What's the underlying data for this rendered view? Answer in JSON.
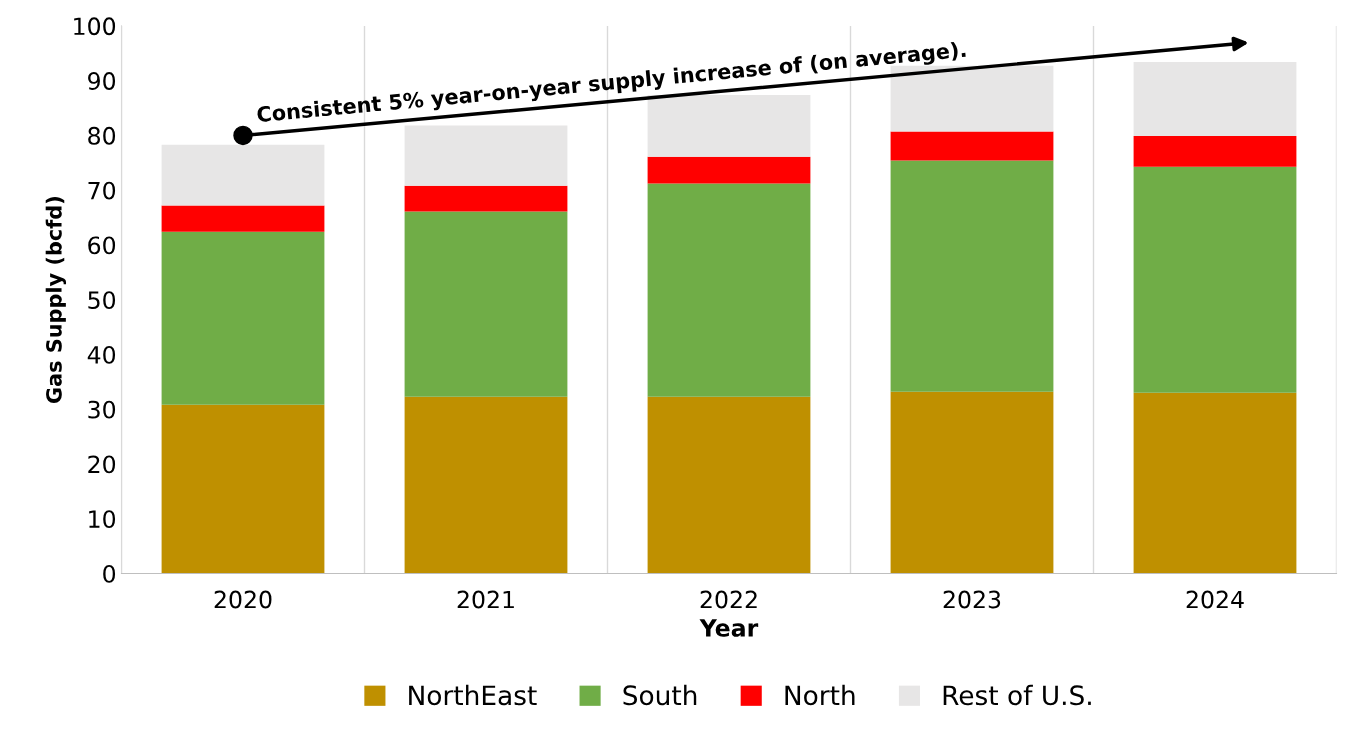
{
  "chart_data": {
    "type": "bar",
    "stacked": true,
    "xlabel": "Year",
    "ylabel": "Gas Supply (bcfd)",
    "categories": [
      "2020",
      "2021",
      "2022",
      "2023",
      "2024"
    ],
    "series": [
      {
        "name": "NorthEast",
        "color": "#bf9000",
        "values": [
          30.8,
          32.3,
          32.3,
          33.2,
          33.0
        ]
      },
      {
        "name": "South",
        "color": "#70ad47",
        "values": [
          31.6,
          33.8,
          38.9,
          42.2,
          41.3
        ]
      },
      {
        "name": "North",
        "color": "#ff0000",
        "values": [
          4.8,
          4.7,
          4.9,
          5.3,
          5.6
        ]
      },
      {
        "name": "Rest of U.S.",
        "color": "#e7e6e6",
        "values": [
          11.1,
          11.0,
          11.3,
          12.0,
          13.5
        ]
      }
    ],
    "ylim": [
      0,
      100
    ],
    "yticks": [
      0,
      10,
      20,
      30,
      40,
      50,
      60,
      70,
      80,
      90,
      100
    ],
    "grid": "x",
    "legend": "bottom",
    "annotations": [
      {
        "text": "Consistent 5% year-on-year supply increase of (on average).",
        "x": "2020",
        "y": 80
      }
    ]
  }
}
